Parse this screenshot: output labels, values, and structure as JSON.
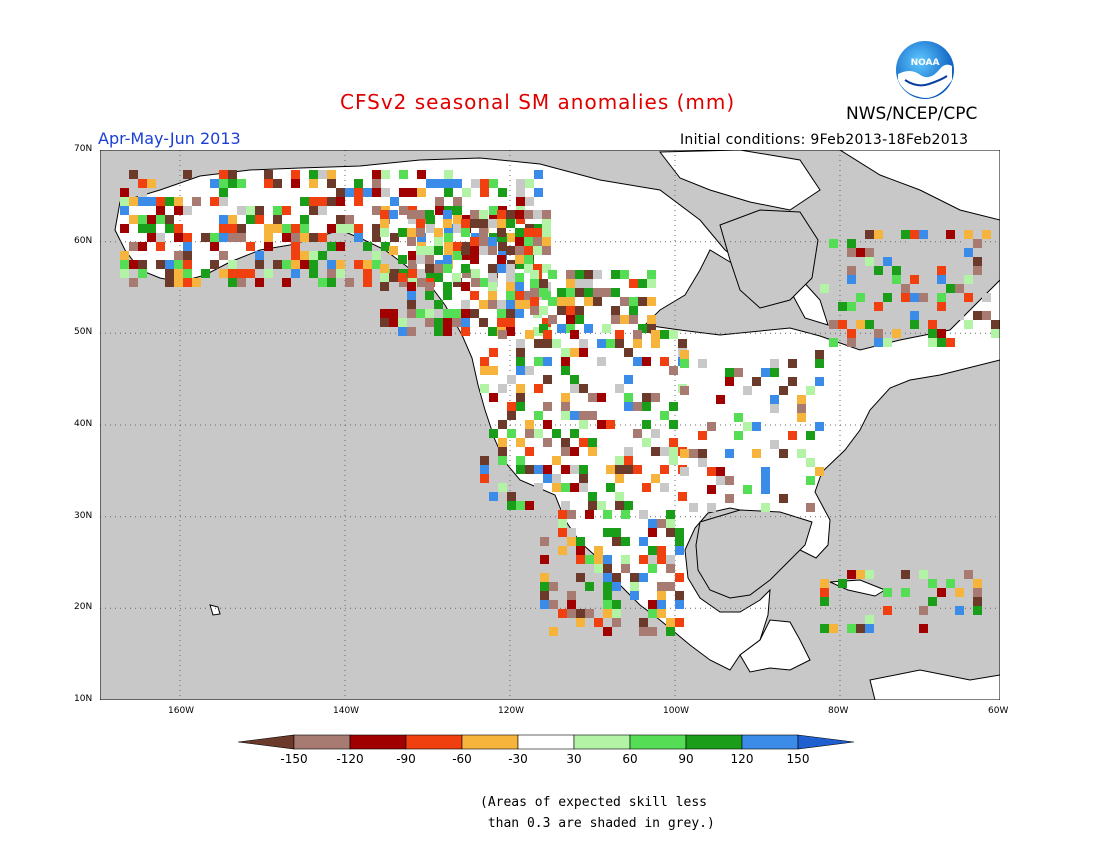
{
  "title": "CFSv2 seasonal SM anomalies (mm)",
  "period": "Apr-May-Jun 2013",
  "initial_conditions": "Initial conditions: 9Feb2013-18Feb2013",
  "agency": "NWS/NCEP/CPC",
  "logo_text": "NOAA",
  "lat_labels": [
    "70N",
    "60N",
    "50N",
    "40N",
    "30N",
    "20N",
    "10N"
  ],
  "lon_labels": [
    "160W",
    "140W",
    "120W",
    "100W",
    "80W",
    "60W"
  ],
  "legend": {
    "labels": [
      "-150",
      "-120",
      "-90",
      "-60",
      "-30",
      "30",
      "60",
      "90",
      "120",
      "150"
    ],
    "colors": [
      "#6b3a2a",
      "#a87b72",
      "#a00000",
      "#f04010",
      "#f6b43c",
      "#ffffff",
      "#b2f3a5",
      "#55dd55",
      "#1a9e1a",
      "#3b8ce8",
      "#1f5fd0"
    ]
  },
  "note_line1": "(Areas of expected skill less",
  "note_line2": " than 0.3 are shaded in grey.)",
  "colors": {
    "ocean": "#c8c8c8",
    "land": "#ffffff",
    "grey_cell": "#c8c8c8"
  }
}
